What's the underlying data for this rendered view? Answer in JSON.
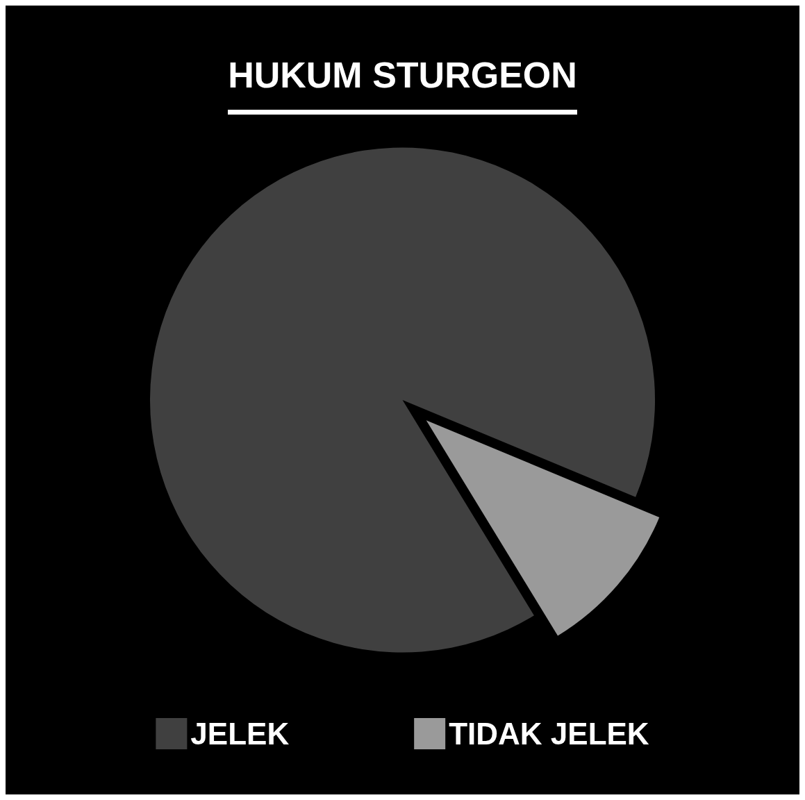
{
  "chart_data": {
    "type": "pie",
    "title": "HUKUM STURGEON",
    "categories": [
      "JELEK",
      "TIDAK JELEK"
    ],
    "values": [
      90,
      10
    ],
    "colors": [
      "#404040",
      "#9a9a9a"
    ],
    "legend": "bottom"
  }
}
